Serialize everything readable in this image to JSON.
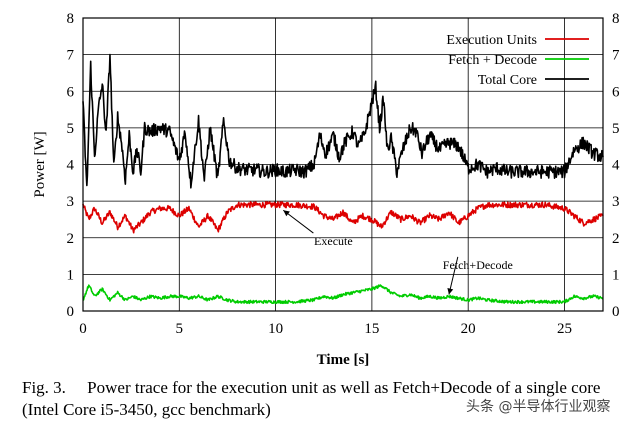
{
  "chart_data": {
    "type": "line",
    "xlabel": "Time [s]",
    "ylabel": "Power [W]",
    "xlim": [
      0,
      27
    ],
    "ylim": [
      0,
      8
    ],
    "x_ticks": [
      0,
      5,
      10,
      15,
      20,
      25
    ],
    "y_ticks": [
      0,
      1,
      2,
      3,
      4,
      5,
      6,
      7,
      8
    ],
    "grid": true,
    "legend_position": "top-right",
    "series": [
      {
        "name": "Execution Units",
        "color": "#dd0000",
        "x": [
          0,
          0.3,
          0.6,
          1.0,
          1.4,
          1.8,
          2.2,
          2.6,
          3.0,
          3.5,
          4.0,
          4.5,
          5.0,
          5.5,
          6.0,
          6.5,
          7.0,
          7.5,
          8.0,
          9.0,
          10.0,
          11.0,
          12.0,
          12.5,
          13.0,
          13.5,
          14.0,
          14.5,
          15.0,
          15.5,
          16.0,
          16.5,
          17.0,
          17.5,
          18.0,
          18.5,
          19.0,
          19.5,
          20.0,
          20.5,
          21.0,
          22.0,
          23.0,
          24.0,
          25.0,
          25.5,
          26.0,
          26.5,
          27.0
        ],
        "values": [
          2.9,
          2.5,
          2.8,
          2.4,
          2.7,
          2.3,
          2.6,
          2.2,
          2.4,
          2.7,
          2.8,
          2.8,
          2.6,
          2.8,
          2.3,
          2.6,
          2.2,
          2.7,
          2.9,
          2.9,
          2.9,
          2.9,
          2.85,
          2.6,
          2.5,
          2.7,
          2.4,
          2.6,
          2.5,
          2.3,
          2.7,
          2.5,
          2.6,
          2.4,
          2.6,
          2.5,
          2.7,
          2.4,
          2.6,
          2.8,
          2.9,
          2.9,
          2.9,
          2.9,
          2.8,
          2.6,
          2.4,
          2.5,
          2.6
        ]
      },
      {
        "name": "Fetch + Decode",
        "color": "#00cc00",
        "x": [
          0,
          0.3,
          0.6,
          1.0,
          1.4,
          1.8,
          2.2,
          2.6,
          3.0,
          3.5,
          4.0,
          4.5,
          5.0,
          5.5,
          6.0,
          6.5,
          7.0,
          7.5,
          8.0,
          9.0,
          10.0,
          11.0,
          12.0,
          12.5,
          13.0,
          13.5,
          14.0,
          14.5,
          15.0,
          15.5,
          16.0,
          16.5,
          17.0,
          17.5,
          18.0,
          18.5,
          19.0,
          19.5,
          20.0,
          20.5,
          21.0,
          22.0,
          23.0,
          24.0,
          25.0,
          25.5,
          26.0,
          26.5,
          27.0
        ],
        "values": [
          0.3,
          0.7,
          0.4,
          0.6,
          0.3,
          0.5,
          0.3,
          0.4,
          0.3,
          0.4,
          0.35,
          0.4,
          0.4,
          0.35,
          0.4,
          0.3,
          0.4,
          0.3,
          0.25,
          0.25,
          0.25,
          0.25,
          0.3,
          0.4,
          0.35,
          0.45,
          0.5,
          0.55,
          0.6,
          0.7,
          0.5,
          0.4,
          0.45,
          0.35,
          0.4,
          0.35,
          0.4,
          0.35,
          0.3,
          0.35,
          0.3,
          0.25,
          0.25,
          0.25,
          0.25,
          0.4,
          0.35,
          0.4,
          0.35
        ]
      },
      {
        "name": "Total Core",
        "color": "#000000",
        "x": [
          0,
          0.2,
          0.4,
          0.6,
          0.8,
          1.0,
          1.2,
          1.4,
          1.6,
          1.8,
          2.0,
          2.2,
          2.4,
          2.6,
          2.8,
          3.0,
          3.2,
          3.5,
          4.0,
          4.5,
          5.0,
          5.3,
          5.6,
          6.0,
          6.3,
          6.6,
          7.0,
          7.3,
          7.6,
          8.0,
          8.5,
          9.0,
          9.5,
          10.0,
          10.5,
          11.0,
          11.5,
          12.0,
          12.3,
          12.6,
          13.0,
          13.3,
          13.6,
          14.0,
          14.3,
          14.6,
          15.0,
          15.2,
          15.4,
          15.6,
          15.8,
          16.0,
          16.3,
          16.6,
          17.0,
          17.3,
          17.6,
          18.0,
          18.5,
          19.0,
          19.5,
          20.0,
          20.5,
          21.0,
          21.5,
          22.0,
          23.0,
          24.0,
          25.0,
          25.5,
          26.0,
          26.5,
          27.0
        ],
        "values": [
          5.7,
          3.3,
          6.7,
          4.2,
          5.5,
          6.2,
          4.8,
          7.0,
          3.9,
          5.3,
          4.6,
          3.6,
          4.8,
          3.8,
          4.4,
          3.8,
          5.0,
          4.9,
          5.0,
          4.9,
          4.1,
          4.9,
          3.5,
          5.2,
          3.6,
          5.0,
          3.6,
          5.2,
          4.1,
          3.9,
          3.85,
          3.85,
          3.8,
          3.85,
          3.8,
          3.85,
          3.8,
          4.0,
          4.8,
          4.3,
          4.8,
          4.2,
          4.6,
          4.9,
          4.5,
          4.8,
          5.7,
          6.1,
          5.0,
          5.8,
          4.4,
          4.7,
          3.8,
          4.4,
          5.0,
          4.9,
          4.3,
          4.8,
          4.4,
          4.6,
          4.5,
          3.9,
          4.0,
          3.8,
          3.9,
          3.8,
          3.8,
          3.8,
          3.8,
          4.4,
          4.6,
          4.3,
          4.2
        ]
      }
    ],
    "annotations": [
      {
        "text": "Execute",
        "x": 13.0,
        "y": 1.8,
        "arrow_to": [
          10.4,
          2.75
        ]
      },
      {
        "text": "Fetch+Decode",
        "x": 20.5,
        "y": 1.15,
        "arrow_to": [
          19.0,
          0.45
        ]
      }
    ]
  },
  "caption": {
    "text": "Fig. 3.  Power trace for the execution unit as well as Fetch+Decode of a single core (Intel Core i5-3450, gcc benchmark)"
  },
  "watermark": {
    "text": "头条 @半导体行业观察"
  }
}
